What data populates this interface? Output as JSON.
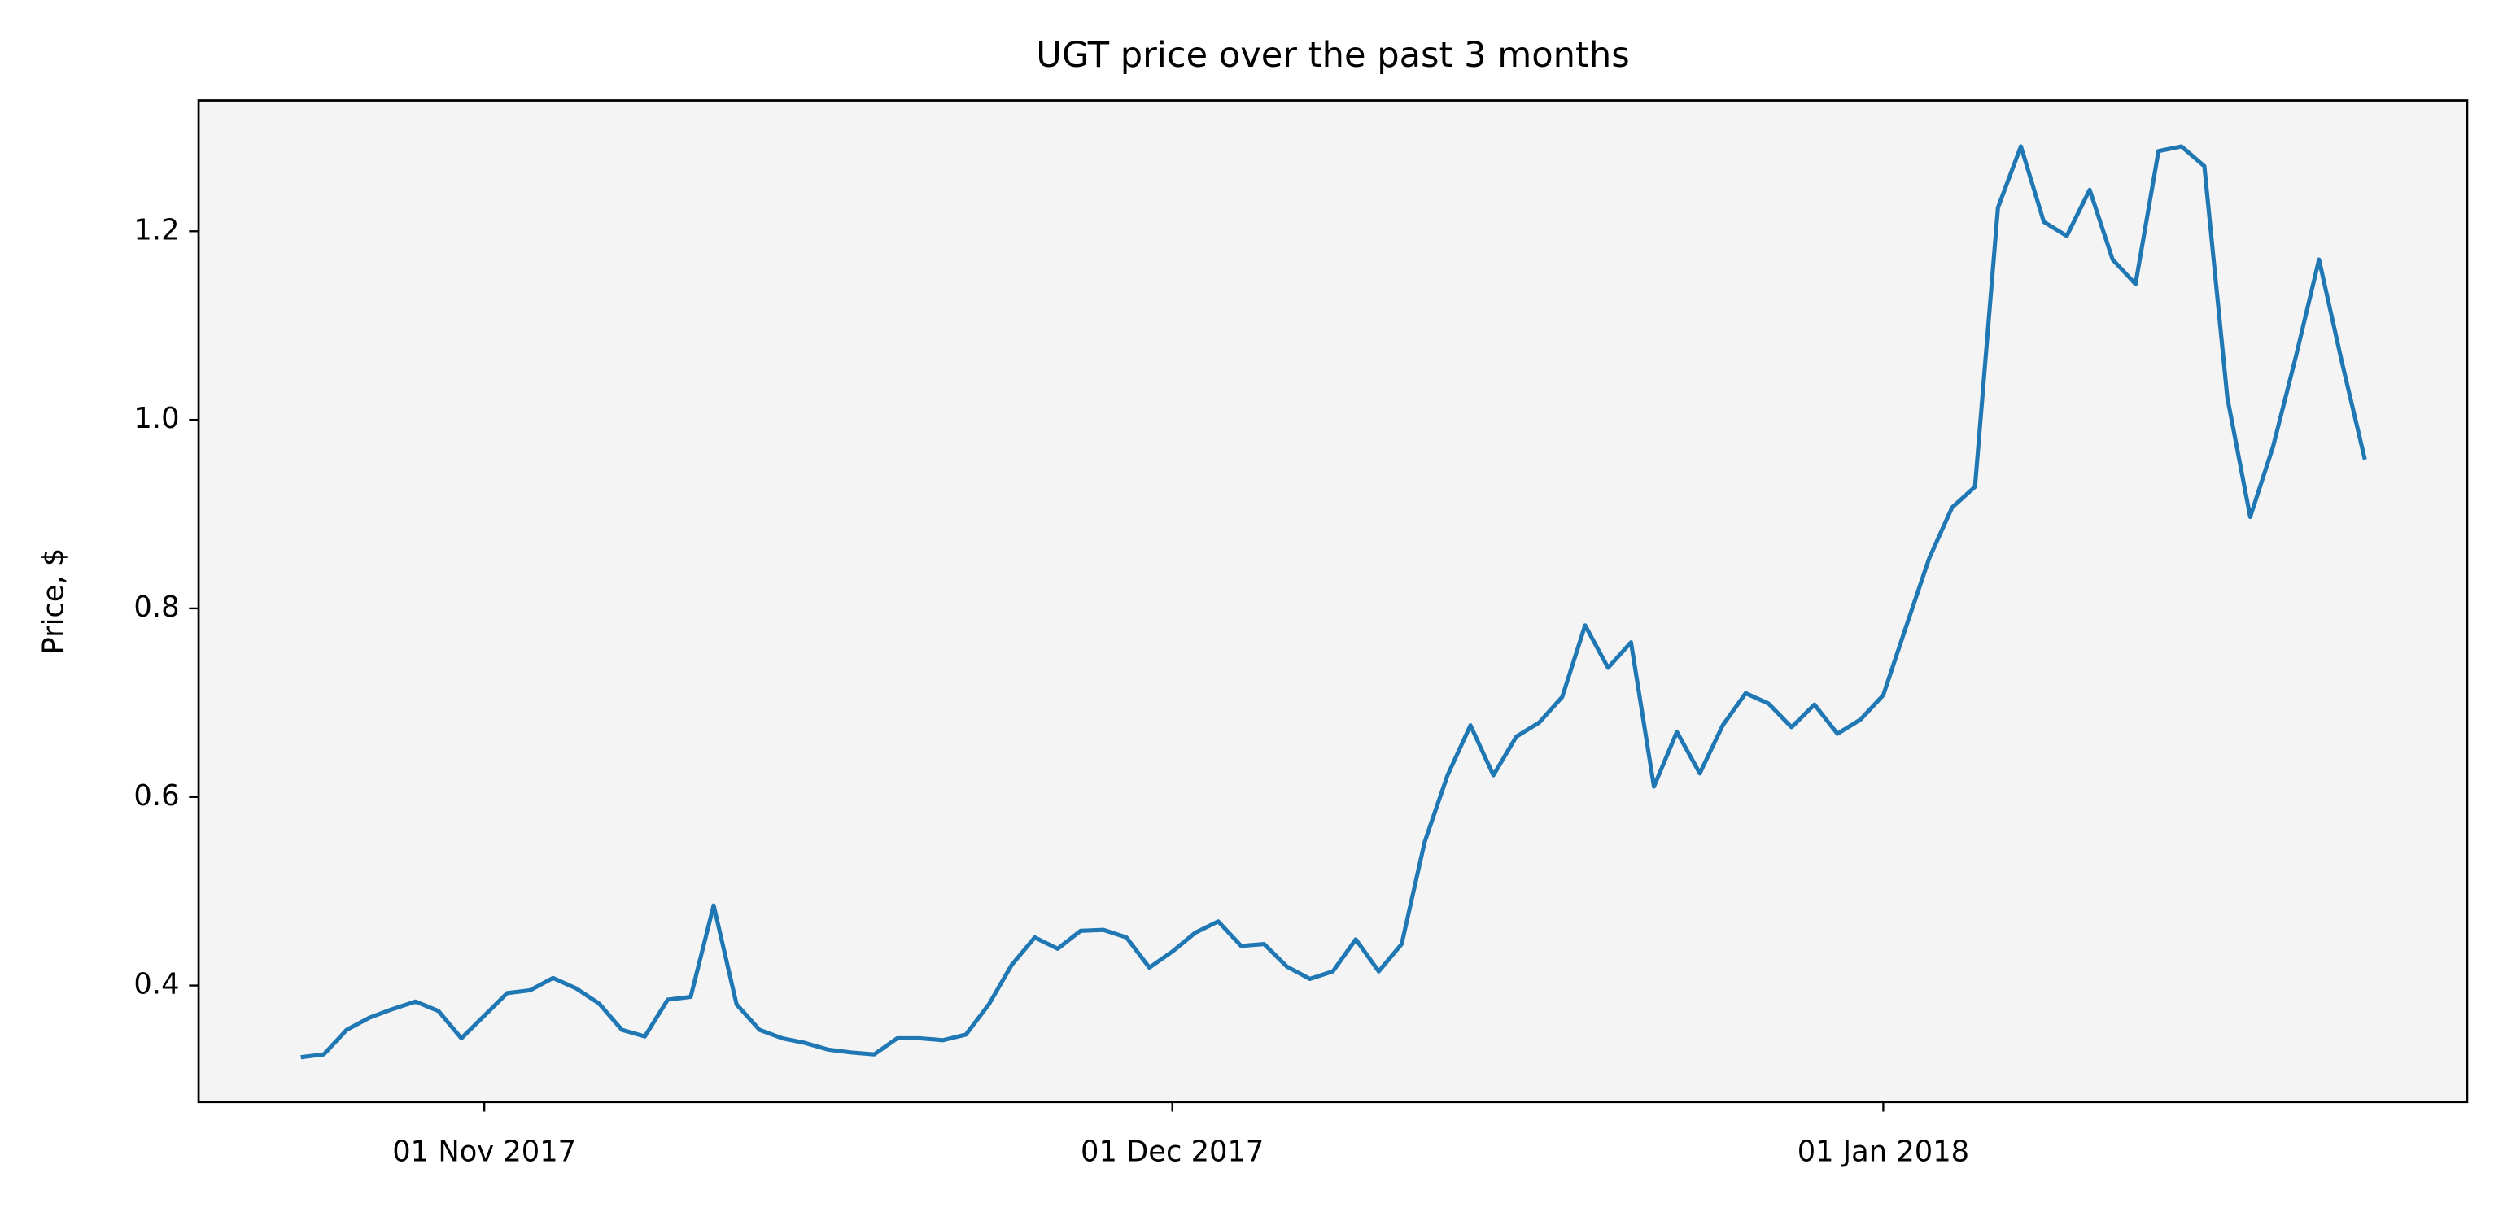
{
  "chart_data": {
    "type": "line",
    "title": "UGT price over the past 3 months",
    "ylabel": "Price, $",
    "x": [
      "2017-10-24",
      "2017-10-25",
      "2017-10-26",
      "2017-10-27",
      "2017-10-28",
      "2017-10-29",
      "2017-10-30",
      "2017-10-31",
      "2017-11-01",
      "2017-11-02",
      "2017-11-03",
      "2017-11-04",
      "2017-11-05",
      "2017-11-06",
      "2017-11-07",
      "2017-11-08",
      "2017-11-09",
      "2017-11-10",
      "2017-11-11",
      "2017-11-12",
      "2017-11-13",
      "2017-11-14",
      "2017-11-15",
      "2017-11-16",
      "2017-11-17",
      "2017-11-18",
      "2017-11-19",
      "2017-11-20",
      "2017-11-21",
      "2017-11-22",
      "2017-11-23",
      "2017-11-24",
      "2017-11-25",
      "2017-11-26",
      "2017-11-27",
      "2017-11-28",
      "2017-11-29",
      "2017-11-30",
      "2017-12-01",
      "2017-12-02",
      "2017-12-03",
      "2017-12-04",
      "2017-12-05",
      "2017-12-06",
      "2017-12-07",
      "2017-12-08",
      "2017-12-09",
      "2017-12-10",
      "2017-12-11",
      "2017-12-12",
      "2017-12-13",
      "2017-12-14",
      "2017-12-15",
      "2017-12-16",
      "2017-12-17",
      "2017-12-18",
      "2017-12-19",
      "2017-12-20",
      "2017-12-21",
      "2017-12-22",
      "2017-12-23",
      "2017-12-24",
      "2017-12-25",
      "2017-12-26",
      "2017-12-27",
      "2017-12-28",
      "2017-12-29",
      "2017-12-30",
      "2017-12-31",
      "2018-01-01",
      "2018-01-02",
      "2018-01-03",
      "2018-01-04",
      "2018-01-05",
      "2018-01-06",
      "2018-01-07",
      "2018-01-08",
      "2018-01-09",
      "2018-01-10",
      "2018-01-11",
      "2018-01-12",
      "2018-01-13",
      "2018-01-14",
      "2018-01-15",
      "2018-01-16",
      "2018-01-17",
      "2018-01-18",
      "2018-01-19",
      "2018-01-20",
      "2018-01-21",
      "2018-01-22"
    ],
    "values": [
      0.324,
      0.327,
      0.353,
      0.366,
      0.375,
      0.383,
      0.373,
      0.344,
      0.368,
      0.392,
      0.395,
      0.408,
      0.397,
      0.381,
      0.353,
      0.346,
      0.385,
      0.388,
      0.485,
      0.38,
      0.353,
      0.344,
      0.339,
      0.332,
      0.329,
      0.327,
      0.344,
      0.344,
      0.342,
      0.348,
      0.38,
      0.422,
      0.451,
      0.439,
      0.458,
      0.459,
      0.451,
      0.419,
      0.436,
      0.456,
      0.468,
      0.442,
      0.444,
      0.42,
      0.407,
      0.415,
      0.449,
      0.415,
      0.444,
      0.552,
      0.623,
      0.676,
      0.623,
      0.664,
      0.679,
      0.706,
      0.782,
      0.737,
      0.764,
      0.611,
      0.669,
      0.625,
      0.676,
      0.71,
      0.699,
      0.674,
      0.698,
      0.667,
      0.682,
      0.708,
      0.781,
      0.853,
      0.907,
      0.929,
      1.225,
      1.29,
      1.21,
      1.195,
      1.244,
      1.17,
      1.144,
      1.285,
      1.29,
      1.269,
      1.024,
      0.897,
      0.972,
      1.068,
      1.17,
      1.061,
      0.958
    ],
    "color": "#1f77b4",
    "xlim": [
      "2017-10-19T13:00",
      "2018-01-26T11:00"
    ],
    "xticks": [
      {
        "value": "2017-11-01",
        "label": "01 Nov 2017"
      },
      {
        "value": "2017-12-01",
        "label": "01 Dec 2017"
      },
      {
        "value": "2018-01-01",
        "label": "01 Jan 2018"
      }
    ],
    "ylim": [
      0.2765,
      1.3387
    ],
    "yticks": [
      0.4,
      0.6,
      {
        "value": 1,
        "label": "1.0"
      },
      0.8,
      1.2
    ],
    "grid": false
  }
}
